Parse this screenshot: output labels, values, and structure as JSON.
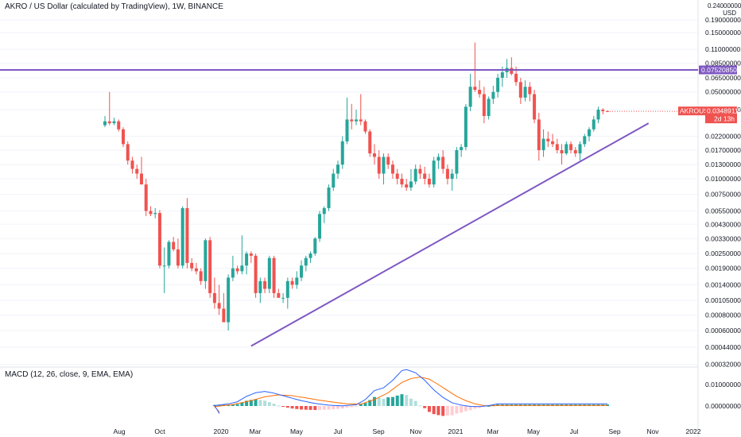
{
  "chart_title": "AKRO / US Dollar (calculated by TradingView), 1W, BINANCE",
  "currency_unit": "USD",
  "top_partial_tick": "0.24000000",
  "symbol_badge": "AKROUSD",
  "price_badge": "0.03489110",
  "countdown_badge": "2d 13h",
  "level_badge": "0.07520850",
  "macd_title": "MACD (12, 26, close, 9, EMA, EMA)",
  "colors": {
    "up": "#26a69a",
    "down": "#ef5350",
    "level_line": "#7e57c2",
    "trend_line": "#7e57c2",
    "macd_line": "#2962ff",
    "signal_line": "#ff6d00",
    "hist_up_strong": "#26a69a",
    "hist_up_weak": "#b2dfdb",
    "hist_down_strong": "#ef5350",
    "hist_down_weak": "#ffcdd2"
  },
  "chart_data": {
    "type": "candlestick",
    "title": "AKRO / US Dollar (calculated by TradingView), 1W, BINANCE",
    "y_scale": "log",
    "yticks": [
      "0.19000000",
      "0.15000000",
      "0.11000000",
      "0.08500000",
      "0.06500000",
      "0.05000000",
      "0.03600000",
      "0.02200000",
      "0.01700000",
      "0.01300000",
      "0.01000000",
      "0.00750000",
      "0.00550000",
      "0.00430000",
      "0.00330000",
      "0.00250000",
      "0.00190000",
      "0.00140000",
      "0.00105000",
      "0.00080000",
      "0.00060000",
      "0.00044000",
      "0.00032000"
    ],
    "xticks": [
      "Aug",
      "Oct",
      "2020",
      "Mar",
      "May",
      "Jul",
      "Sep",
      "Nov",
      "2021",
      "Mar",
      "May",
      "Jul",
      "Sep",
      "Nov",
      "2022"
    ],
    "horizontal_level": 0.0752085,
    "trendline": {
      "from": [
        "2020-03-02",
        0.00045
      ],
      "to": [
        "2021-11-01",
        0.028
      ]
    },
    "candles": [
      {
        "date": "2019-07-22",
        "o": 0.027,
        "h": 0.032,
        "l": 0.026,
        "c": 0.029
      },
      {
        "date": "2019-07-29",
        "o": 0.029,
        "h": 0.05,
        "l": 0.027,
        "c": 0.028
      },
      {
        "date": "2019-08-05",
        "o": 0.028,
        "h": 0.031,
        "l": 0.027,
        "c": 0.029
      },
      {
        "date": "2019-08-12",
        "o": 0.029,
        "h": 0.03,
        "l": 0.024,
        "c": 0.025
      },
      {
        "date": "2019-08-19",
        "o": 0.025,
        "h": 0.026,
        "l": 0.018,
        "c": 0.019
      },
      {
        "date": "2019-08-26",
        "o": 0.019,
        "h": 0.02,
        "l": 0.013,
        "c": 0.014
      },
      {
        "date": "2019-09-02",
        "o": 0.014,
        "h": 0.015,
        "l": 0.011,
        "c": 0.012
      },
      {
        "date": "2019-09-09",
        "o": 0.012,
        "h": 0.013,
        "l": 0.01,
        "c": 0.011
      },
      {
        "date": "2019-09-16",
        "o": 0.011,
        "h": 0.015,
        "l": 0.009,
        "c": 0.009
      },
      {
        "date": "2019-09-23",
        "o": 0.009,
        "h": 0.01,
        "l": 0.005,
        "c": 0.0055
      },
      {
        "date": "2019-09-30",
        "o": 0.0055,
        "h": 0.006,
        "l": 0.005,
        "c": 0.0052
      },
      {
        "date": "2019-10-07",
        "o": 0.0052,
        "h": 0.0058,
        "l": 0.0048,
        "c": 0.0053
      },
      {
        "date": "2019-10-14",
        "o": 0.0053,
        "h": 0.0056,
        "l": 0.0019,
        "c": 0.002
      },
      {
        "date": "2019-10-21",
        "o": 0.002,
        "h": 0.0028,
        "l": 0.0012,
        "c": 0.002
      },
      {
        "date": "2019-10-28",
        "o": 0.002,
        "h": 0.0032,
        "l": 0.0019,
        "c": 0.0031
      },
      {
        "date": "2019-11-04",
        "o": 0.0031,
        "h": 0.0034,
        "l": 0.0026,
        "c": 0.0027
      },
      {
        "date": "2019-11-11",
        "o": 0.0027,
        "h": 0.0033,
        "l": 0.0019,
        "c": 0.002
      },
      {
        "date": "2019-11-18",
        "o": 0.002,
        "h": 0.006,
        "l": 0.0019,
        "c": 0.0058
      },
      {
        "date": "2019-11-25",
        "o": 0.0058,
        "h": 0.007,
        "l": 0.0019,
        "c": 0.0021
      },
      {
        "date": "2019-12-02",
        "o": 0.0021,
        "h": 0.0023,
        "l": 0.0018,
        "c": 0.0019
      },
      {
        "date": "2019-12-09",
        "o": 0.0019,
        "h": 0.0021,
        "l": 0.0017,
        "c": 0.0018
      },
      {
        "date": "2019-12-16",
        "o": 0.0018,
        "h": 0.0019,
        "l": 0.0014,
        "c": 0.0015
      },
      {
        "date": "2019-12-23",
        "o": 0.0015,
        "h": 0.0033,
        "l": 0.0013,
        "c": 0.0032
      },
      {
        "date": "2019-12-30",
        "o": 0.0032,
        "h": 0.0034,
        "l": 0.0011,
        "c": 0.0012
      },
      {
        "date": "2020-01-06",
        "o": 0.0012,
        "h": 0.0016,
        "l": 0.0009,
        "c": 0.001
      },
      {
        "date": "2020-01-13",
        "o": 0.001,
        "h": 0.0014,
        "l": 0.0008,
        "c": 0.0009
      },
      {
        "date": "2020-01-20",
        "o": 0.0009,
        "h": 0.0012,
        "l": 0.0007,
        "c": 0.0007
      },
      {
        "date": "2020-01-27",
        "o": 0.0007,
        "h": 0.0017,
        "l": 0.0006,
        "c": 0.0016
      },
      {
        "date": "2020-02-03",
        "o": 0.0016,
        "h": 0.0024,
        "l": 0.0015,
        "c": 0.0019
      },
      {
        "date": "2020-02-10",
        "o": 0.0019,
        "h": 0.002,
        "l": 0.0017,
        "c": 0.0018
      },
      {
        "date": "2020-02-17",
        "o": 0.0018,
        "h": 0.0035,
        "l": 0.0017,
        "c": 0.002
      },
      {
        "date": "2020-02-24",
        "o": 0.002,
        "h": 0.0026,
        "l": 0.0017,
        "c": 0.0025
      },
      {
        "date": "2020-03-02",
        "o": 0.0025,
        "h": 0.0026,
        "l": 0.0021,
        "c": 0.0024
      },
      {
        "date": "2020-03-09",
        "o": 0.0024,
        "h": 0.0025,
        "l": 0.0011,
        "c": 0.0012
      },
      {
        "date": "2020-03-16",
        "o": 0.0012,
        "h": 0.0016,
        "l": 0.001,
        "c": 0.0015
      },
      {
        "date": "2020-03-23",
        "o": 0.0015,
        "h": 0.0016,
        "l": 0.0012,
        "c": 0.0013
      },
      {
        "date": "2020-03-30",
        "o": 0.0013,
        "h": 0.0024,
        "l": 0.0012,
        "c": 0.0023
      },
      {
        "date": "2020-04-06",
        "o": 0.0023,
        "h": 0.0024,
        "l": 0.0011,
        "c": 0.0012
      },
      {
        "date": "2020-04-13",
        "o": 0.0012,
        "h": 0.0013,
        "l": 0.0011,
        "c": 0.0011
      },
      {
        "date": "2020-04-20",
        "o": 0.0011,
        "h": 0.0012,
        "l": 0.001,
        "c": 0.0011
      },
      {
        "date": "2020-04-27",
        "o": 0.0011,
        "h": 0.0016,
        "l": 0.0009,
        "c": 0.0015
      },
      {
        "date": "2020-05-04",
        "o": 0.0015,
        "h": 0.0016,
        "l": 0.0013,
        "c": 0.0014
      },
      {
        "date": "2020-05-11",
        "o": 0.0014,
        "h": 0.0018,
        "l": 0.0013,
        "c": 0.0016
      },
      {
        "date": "2020-05-18",
        "o": 0.0016,
        "h": 0.0022,
        "l": 0.0015,
        "c": 0.002
      },
      {
        "date": "2020-05-25",
        "o": 0.002,
        "h": 0.0024,
        "l": 0.0018,
        "c": 0.0023
      },
      {
        "date": "2020-06-01",
        "o": 0.0023,
        "h": 0.0026,
        "l": 0.0021,
        "c": 0.0025
      },
      {
        "date": "2020-06-08",
        "o": 0.0025,
        "h": 0.0034,
        "l": 0.0024,
        "c": 0.0033
      },
      {
        "date": "2020-06-15",
        "o": 0.0033,
        "h": 0.0055,
        "l": 0.0031,
        "c": 0.0052
      },
      {
        "date": "2020-06-22",
        "o": 0.0052,
        "h": 0.006,
        "l": 0.0044,
        "c": 0.0058
      },
      {
        "date": "2020-06-29",
        "o": 0.0058,
        "h": 0.009,
        "l": 0.0055,
        "c": 0.0085
      },
      {
        "date": "2020-07-06",
        "o": 0.0085,
        "h": 0.012,
        "l": 0.008,
        "c": 0.011
      },
      {
        "date": "2020-07-13",
        "o": 0.011,
        "h": 0.014,
        "l": 0.01,
        "c": 0.013
      },
      {
        "date": "2020-07-20",
        "o": 0.013,
        "h": 0.022,
        "l": 0.012,
        "c": 0.02
      },
      {
        "date": "2020-07-27",
        "o": 0.02,
        "h": 0.045,
        "l": 0.019,
        "c": 0.03
      },
      {
        "date": "2020-08-03",
        "o": 0.03,
        "h": 0.04,
        "l": 0.025,
        "c": 0.029
      },
      {
        "date": "2020-08-10",
        "o": 0.029,
        "h": 0.036,
        "l": 0.027,
        "c": 0.03
      },
      {
        "date": "2020-08-17",
        "o": 0.03,
        "h": 0.048,
        "l": 0.027,
        "c": 0.029
      },
      {
        "date": "2020-08-24",
        "o": 0.029,
        "h": 0.03,
        "l": 0.023,
        "c": 0.024
      },
      {
        "date": "2020-08-31",
        "o": 0.024,
        "h": 0.025,
        "l": 0.015,
        "c": 0.016
      },
      {
        "date": "2020-09-07",
        "o": 0.016,
        "h": 0.019,
        "l": 0.013,
        "c": 0.015
      },
      {
        "date": "2020-09-14",
        "o": 0.015,
        "h": 0.017,
        "l": 0.01,
        "c": 0.011
      },
      {
        "date": "2020-09-21",
        "o": 0.011,
        "h": 0.016,
        "l": 0.009,
        "c": 0.015
      },
      {
        "date": "2020-09-28",
        "o": 0.015,
        "h": 0.016,
        "l": 0.012,
        "c": 0.013
      },
      {
        "date": "2020-10-05",
        "o": 0.013,
        "h": 0.014,
        "l": 0.01,
        "c": 0.011
      },
      {
        "date": "2020-10-12",
        "o": 0.011,
        "h": 0.012,
        "l": 0.009,
        "c": 0.01
      },
      {
        "date": "2020-10-19",
        "o": 0.01,
        "h": 0.011,
        "l": 0.0085,
        "c": 0.009
      },
      {
        "date": "2020-10-26",
        "o": 0.009,
        "h": 0.01,
        "l": 0.008,
        "c": 0.0085
      },
      {
        "date": "2020-11-02",
        "o": 0.0085,
        "h": 0.012,
        "l": 0.008,
        "c": 0.0095
      },
      {
        "date": "2020-11-09",
        "o": 0.0095,
        "h": 0.013,
        "l": 0.009,
        "c": 0.012
      },
      {
        "date": "2020-11-16",
        "o": 0.012,
        "h": 0.013,
        "l": 0.01,
        "c": 0.011
      },
      {
        "date": "2020-11-23",
        "o": 0.011,
        "h": 0.0125,
        "l": 0.009,
        "c": 0.01
      },
      {
        "date": "2020-11-30",
        "o": 0.01,
        "h": 0.011,
        "l": 0.0085,
        "c": 0.009
      },
      {
        "date": "2020-12-07",
        "o": 0.009,
        "h": 0.015,
        "l": 0.0085,
        "c": 0.014
      },
      {
        "date": "2020-12-14",
        "o": 0.014,
        "h": 0.016,
        "l": 0.012,
        "c": 0.015
      },
      {
        "date": "2020-12-21",
        "o": 0.015,
        "h": 0.017,
        "l": 0.011,
        "c": 0.012
      },
      {
        "date": "2020-12-28",
        "o": 0.012,
        "h": 0.013,
        "l": 0.009,
        "c": 0.01
      },
      {
        "date": "2021-01-04",
        "o": 0.01,
        "h": 0.012,
        "l": 0.008,
        "c": 0.011
      },
      {
        "date": "2021-01-11",
        "o": 0.011,
        "h": 0.018,
        "l": 0.01,
        "c": 0.017
      },
      {
        "date": "2021-01-18",
        "o": 0.017,
        "h": 0.019,
        "l": 0.015,
        "c": 0.018
      },
      {
        "date": "2021-01-25",
        "o": 0.018,
        "h": 0.04,
        "l": 0.017,
        "c": 0.038
      },
      {
        "date": "2021-02-01",
        "o": 0.038,
        "h": 0.07,
        "l": 0.035,
        "c": 0.055
      },
      {
        "date": "2021-02-08",
        "o": 0.055,
        "h": 0.125,
        "l": 0.05,
        "c": 0.052
      },
      {
        "date": "2021-02-15",
        "o": 0.052,
        "h": 0.062,
        "l": 0.045,
        "c": 0.048
      },
      {
        "date": "2021-02-22",
        "o": 0.048,
        "h": 0.055,
        "l": 0.028,
        "c": 0.032
      },
      {
        "date": "2021-03-01",
        "o": 0.032,
        "h": 0.046,
        "l": 0.03,
        "c": 0.044
      },
      {
        "date": "2021-03-08",
        "o": 0.044,
        "h": 0.056,
        "l": 0.04,
        "c": 0.05
      },
      {
        "date": "2021-03-15",
        "o": 0.05,
        "h": 0.07,
        "l": 0.045,
        "c": 0.065
      },
      {
        "date": "2021-03-22",
        "o": 0.065,
        "h": 0.08,
        "l": 0.055,
        "c": 0.072
      },
      {
        "date": "2021-03-29",
        "o": 0.072,
        "h": 0.092,
        "l": 0.065,
        "c": 0.078
      },
      {
        "date": "2021-04-05",
        "o": 0.078,
        "h": 0.095,
        "l": 0.068,
        "c": 0.07
      },
      {
        "date": "2021-04-12",
        "o": 0.07,
        "h": 0.08,
        "l": 0.056,
        "c": 0.06
      },
      {
        "date": "2021-04-19",
        "o": 0.06,
        "h": 0.065,
        "l": 0.04,
        "c": 0.045
      },
      {
        "date": "2021-04-26",
        "o": 0.045,
        "h": 0.062,
        "l": 0.042,
        "c": 0.055
      },
      {
        "date": "2021-05-03",
        "o": 0.055,
        "h": 0.06,
        "l": 0.042,
        "c": 0.048
      },
      {
        "date": "2021-05-10",
        "o": 0.048,
        "h": 0.052,
        "l": 0.028,
        "c": 0.03
      },
      {
        "date": "2021-05-17",
        "o": 0.03,
        "h": 0.034,
        "l": 0.014,
        "c": 0.017
      },
      {
        "date": "2021-05-24",
        "o": 0.017,
        "h": 0.025,
        "l": 0.015,
        "c": 0.021
      },
      {
        "date": "2021-05-31",
        "o": 0.021,
        "h": 0.024,
        "l": 0.018,
        "c": 0.02
      },
      {
        "date": "2021-06-07",
        "o": 0.02,
        "h": 0.023,
        "l": 0.018,
        "c": 0.019
      },
      {
        "date": "2021-06-14",
        "o": 0.019,
        "h": 0.021,
        "l": 0.016,
        "c": 0.017
      },
      {
        "date": "2021-06-21",
        "o": 0.017,
        "h": 0.019,
        "l": 0.013,
        "c": 0.016
      },
      {
        "date": "2021-06-28",
        "o": 0.016,
        "h": 0.02,
        "l": 0.0155,
        "c": 0.019
      },
      {
        "date": "2021-07-05",
        "o": 0.019,
        "h": 0.02,
        "l": 0.016,
        "c": 0.017
      },
      {
        "date": "2021-07-12",
        "o": 0.017,
        "h": 0.018,
        "l": 0.015,
        "c": 0.016
      },
      {
        "date": "2021-07-19",
        "o": 0.016,
        "h": 0.02,
        "l": 0.014,
        "c": 0.019
      },
      {
        "date": "2021-07-26",
        "o": 0.019,
        "h": 0.023,
        "l": 0.018,
        "c": 0.022
      },
      {
        "date": "2021-08-02",
        "o": 0.022,
        "h": 0.026,
        "l": 0.02,
        "c": 0.025
      },
      {
        "date": "2021-08-09",
        "o": 0.025,
        "h": 0.032,
        "l": 0.024,
        "c": 0.03
      },
      {
        "date": "2021-08-16",
        "o": 0.03,
        "h": 0.038,
        "l": 0.028,
        "c": 0.036
      },
      {
        "date": "2021-08-23",
        "o": 0.036,
        "h": 0.037,
        "l": 0.033,
        "c": 0.035
      },
      {
        "date": "2021-08-30",
        "o": 0.035,
        "h": 0.0355,
        "l": 0.0345,
        "c": 0.0348911
      }
    ],
    "macd": {
      "title": "MACD (12, 26, close, 9, EMA, EMA)",
      "yticks": [
        "0.01000000",
        "0.00000000"
      ],
      "macd_line": [
        [
          0,
          -0.0035
        ],
        [
          5,
          -0.0025
        ],
        [
          10,
          -0.0018
        ],
        [
          15,
          -0.0012
        ],
        [
          20,
          -0.0006
        ],
        [
          24,
          0.0002
        ],
        [
          27,
          0.001
        ],
        [
          29,
          0.002
        ],
        [
          31,
          0.0045
        ],
        [
          33,
          0.0062
        ],
        [
          35,
          0.0068
        ],
        [
          37,
          0.006
        ],
        [
          40,
          0.0042
        ],
        [
          43,
          0.0025
        ],
        [
          46,
          0.0012
        ],
        [
          49,
          0.0004
        ],
        [
          52,
          0.0001
        ],
        [
          55,
          0.0006
        ],
        [
          57,
          0.003
        ],
        [
          59,
          0.0072
        ],
        [
          61,
          0.0085
        ],
        [
          63,
          0.012
        ],
        [
          65,
          0.0165
        ],
        [
          66,
          0.017
        ],
        [
          68,
          0.0155
        ],
        [
          70,
          0.012
        ],
        [
          72,
          0.0075
        ],
        [
          74,
          0.004
        ],
        [
          76,
          0.0015
        ],
        [
          78,
          0.0004
        ],
        [
          80,
          -0.0002
        ],
        [
          82,
          -0.0003
        ],
        [
          84,
          0.0002
        ],
        [
          86,
          0.001
        ]
      ],
      "signal_line": [
        [
          0,
          -0.0028
        ],
        [
          6,
          -0.0022
        ],
        [
          12,
          -0.0016
        ],
        [
          18,
          -0.001
        ],
        [
          24,
          -0.0003
        ],
        [
          28,
          0.0007
        ],
        [
          32,
          0.0025
        ],
        [
          35,
          0.0043
        ],
        [
          38,
          0.0052
        ],
        [
          41,
          0.0048
        ],
        [
          44,
          0.0038
        ],
        [
          47,
          0.0027
        ],
        [
          50,
          0.0018
        ],
        [
          53,
          0.001
        ],
        [
          56,
          0.0009
        ],
        [
          59,
          0.003
        ],
        [
          62,
          0.0062
        ],
        [
          65,
          0.011
        ],
        [
          67,
          0.0128
        ],
        [
          69,
          0.0135
        ],
        [
          71,
          0.0125
        ],
        [
          73,
          0.01
        ],
        [
          75,
          0.0072
        ],
        [
          77,
          0.0045
        ],
        [
          79,
          0.0025
        ],
        [
          81,
          0.001
        ],
        [
          83,
          0.0002
        ],
        [
          85,
          0.0001
        ],
        [
          86,
          0.0003
        ]
      ]
    }
  }
}
